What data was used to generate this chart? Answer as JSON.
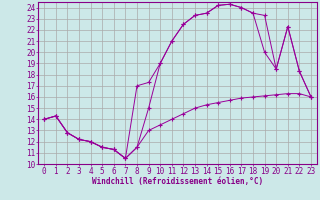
{
  "xlabel": "Windchill (Refroidissement éolien,°C)",
  "bg_color": "#cce8e8",
  "grid_color": "#aaaaaa",
  "line_color": "#990099",
  "xlim": [
    -0.5,
    23.5
  ],
  "ylim": [
    10,
    24.5
  ],
  "xtick_labels": [
    "0",
    "1",
    "2",
    "3",
    "4",
    "5",
    "6",
    "7",
    "8",
    "9",
    "10",
    "11",
    "12",
    "13",
    "14",
    "15",
    "16",
    "17",
    "18",
    "19",
    "20",
    "21",
    "22",
    "23"
  ],
  "ytick_labels": [
    "10",
    "11",
    "12",
    "13",
    "14",
    "15",
    "16",
    "17",
    "18",
    "19",
    "20",
    "21",
    "22",
    "23",
    "24"
  ],
  "line1_x": [
    0,
    1,
    2,
    3,
    4,
    5,
    6,
    7,
    8,
    9,
    10,
    11,
    12,
    13,
    14,
    15,
    16,
    17,
    18,
    19,
    20,
    21,
    22,
    23
  ],
  "line1_y": [
    14.0,
    14.3,
    12.8,
    12.2,
    12.0,
    11.5,
    11.3,
    10.5,
    11.5,
    13.0,
    13.5,
    14.0,
    14.5,
    15.0,
    15.3,
    15.5,
    15.7,
    15.9,
    16.0,
    16.1,
    16.2,
    16.3,
    16.3,
    16.0
  ],
  "line2_x": [
    0,
    1,
    2,
    3,
    4,
    5,
    6,
    7,
    8,
    9,
    10,
    11,
    12,
    13,
    14,
    15,
    16,
    17,
    18,
    19,
    20,
    21,
    22,
    23
  ],
  "line2_y": [
    14.0,
    14.3,
    12.8,
    12.2,
    12.0,
    11.5,
    11.3,
    10.5,
    11.5,
    15.0,
    19.0,
    21.0,
    22.5,
    23.3,
    23.5,
    24.2,
    24.3,
    24.0,
    23.5,
    23.3,
    18.5,
    22.3,
    18.3,
    16.0
  ],
  "line3_x": [
    0,
    1,
    2,
    3,
    4,
    5,
    6,
    7,
    8,
    9,
    10,
    11,
    12,
    13,
    14,
    15,
    16,
    17,
    18,
    19,
    20,
    21,
    22,
    23
  ],
  "line3_y": [
    14.0,
    14.3,
    12.8,
    12.2,
    12.0,
    11.5,
    11.3,
    10.5,
    17.0,
    17.3,
    19.0,
    21.0,
    22.5,
    23.3,
    23.5,
    24.2,
    24.3,
    24.0,
    23.5,
    20.0,
    18.5,
    22.3,
    18.3,
    16.0
  ],
  "tick_fontsize": 5.5,
  "xlabel_fontsize": 5.5,
  "tick_color": "#880088",
  "spine_color": "#880088"
}
